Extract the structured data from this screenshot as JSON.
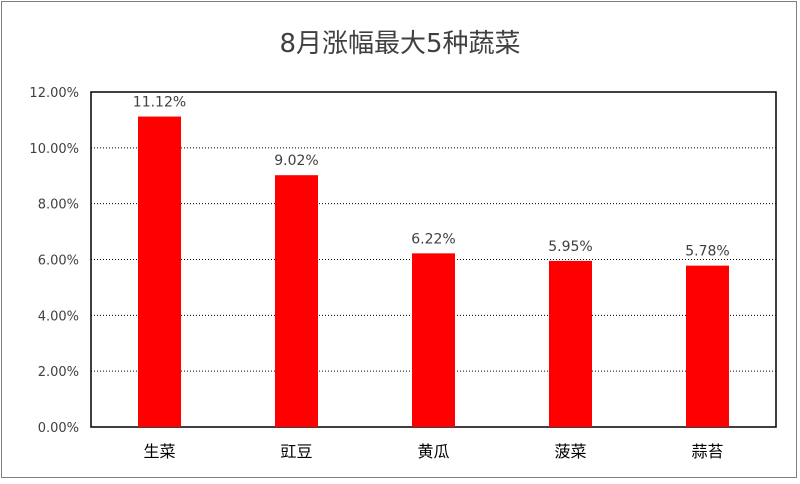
{
  "chart_data": {
    "type": "bar",
    "title": "8月涨幅最大5种蔬菜",
    "categories": [
      "生菜",
      "豇豆",
      "黄瓜",
      "菠菜",
      "蒜苔"
    ],
    "values": [
      11.12,
      9.02,
      6.22,
      5.95,
      5.78
    ],
    "value_labels": [
      "11.12%",
      "9.02%",
      "6.22%",
      "5.95%",
      "5.78%"
    ],
    "y_ticks": [
      "0.00%",
      "2.00%",
      "4.00%",
      "6.00%",
      "8.00%",
      "10.00%",
      "12.00%"
    ],
    "ylim": [
      0,
      12
    ],
    "grid": true,
    "bar_color": "#ff0000",
    "xlabel": "",
    "ylabel": ""
  }
}
